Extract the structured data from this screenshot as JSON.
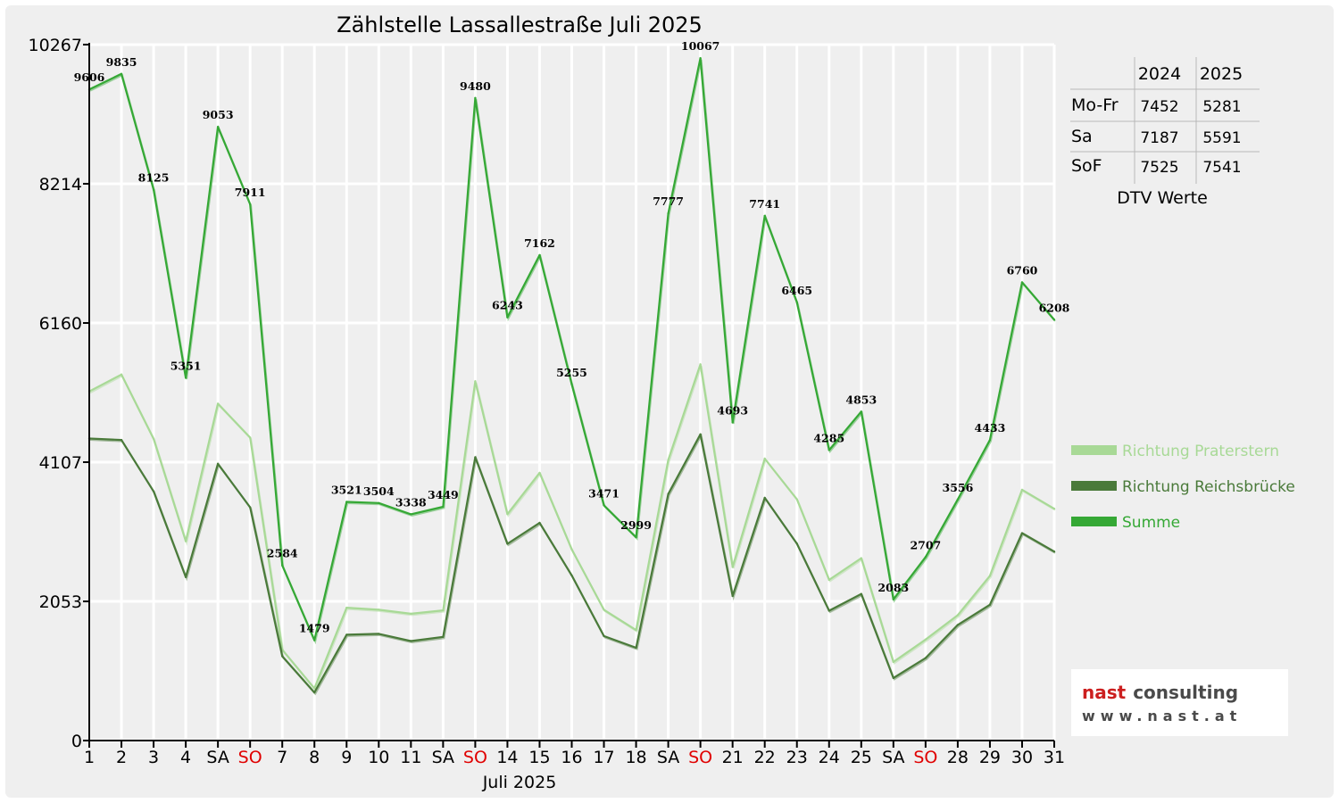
{
  "colors": {
    "background": "#efefef",
    "plot_background": "#efefef",
    "grid": "#ffffff",
    "weekend_red": "#e00000",
    "praterstern": "#a8d996",
    "reichsbruecke": "#4a7a3a",
    "summe": "#35a835"
  },
  "chart_data": {
    "type": "line",
    "title": "Zählstelle Lassallestraße Juli 2025",
    "xlabel": "Juli 2025",
    "ylabel": "",
    "ylim": [
      0,
      10267
    ],
    "yticks": [
      "0",
      "2053",
      "4107",
      "6160",
      "8214",
      "10267"
    ],
    "ytick_values": [
      0,
      2053,
      4107,
      6160,
      8214,
      10267
    ],
    "grid": true,
    "legend_position": "right",
    "categories": [
      "1",
      "2",
      "3",
      "4",
      "SA",
      "SO",
      "7",
      "8",
      "9",
      "10",
      "11",
      "SA",
      "SO",
      "14",
      "15",
      "16",
      "17",
      "18",
      "SA",
      "SO",
      "21",
      "22",
      "23",
      "24",
      "25",
      "SA",
      "SO",
      "28",
      "29",
      "30",
      "31"
    ],
    "weekend_sunday_indices": [
      5,
      12,
      19,
      26
    ],
    "series": [
      {
        "name": "Richtung Praterstern",
        "color": "#a8d996",
        "values": [
          5150,
          5400,
          4450,
          2940,
          4970,
          4470,
          1340,
          770,
          1960,
          1930,
          1870,
          1920,
          5300,
          3340,
          3950,
          2820,
          1930,
          1630,
          4140,
          5550,
          2560,
          4160,
          3560,
          2370,
          2690,
          1160,
          1490,
          1850,
          2430,
          3700,
          3420
        ]
      },
      {
        "name": "Richtung Reichsbrücke",
        "color": "#4a7a3a",
        "values": [
          4456,
          4435,
          3675,
          2411,
          4083,
          3441,
          1244,
          709,
          1561,
          1574,
          1468,
          1529,
          4180,
          2903,
          3212,
          2435,
          1541,
          1369,
          3637,
          4517,
          2133,
          3581,
          2905,
          1915,
          2163,
          923,
          1217,
          1706,
          2003,
          3060,
          2788
        ]
      },
      {
        "name": "Summe",
        "color": "#35a835",
        "values": [
          9606,
          9835,
          8125,
          5351,
          9053,
          7911,
          2584,
          1479,
          3521,
          3504,
          3338,
          3449,
          9480,
          6243,
          7162,
          5255,
          3471,
          2999,
          7777,
          10067,
          4693,
          7741,
          6465,
          4285,
          4853,
          2083,
          2707,
          3556,
          4433,
          6760,
          6208
        ],
        "labels": [
          "9606",
          "9835",
          "8125",
          "5351",
          "9053",
          "7911",
          "2584",
          "1479",
          "3521",
          "3504",
          "3338",
          "3449",
          "9480",
          "6243",
          "7162",
          "5255",
          "3471",
          "2999",
          "7777",
          "10067",
          "4693",
          "7741",
          "6465",
          "4285",
          "4853",
          "2083",
          "2707",
          "3556",
          "4433",
          "6760",
          "6208"
        ]
      }
    ]
  },
  "dtv_table": {
    "headers": [
      "",
      "2024",
      "2025"
    ],
    "rows": [
      {
        "label": "Mo-Fr",
        "v2024": "7452",
        "v2025": "5281"
      },
      {
        "label": "Sa",
        "v2024": "7187",
        "v2025": "5591"
      },
      {
        "label": "SoF",
        "v2024": "7525",
        "v2025": "7541"
      }
    ],
    "caption": "DTV Werte"
  },
  "logo": {
    "word1": "nast",
    "word2": "consulting",
    "url": "www.nast.at"
  }
}
